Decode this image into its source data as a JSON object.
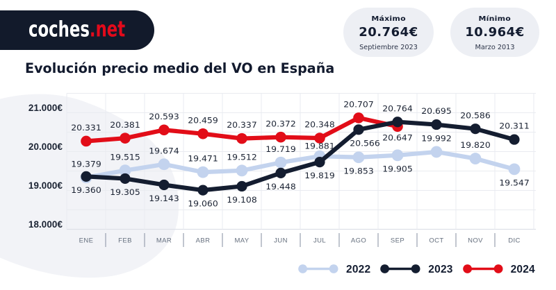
{
  "header": {
    "logo": {
      "brand_white": "coches",
      "brand_red": ".net"
    },
    "badges": [
      {
        "label": "Máximo",
        "value": "20.764€",
        "sublabel": "Septiembre 2023"
      },
      {
        "label": "Mínimo",
        "value": "10.964€",
        "sublabel": "Marzo 2013"
      }
    ]
  },
  "title": "Evolución precio medio del VO en España",
  "chart_data": {
    "type": "line",
    "categories": [
      "ENE",
      "FEB",
      "MAR",
      "ABR",
      "MAY",
      "JUN",
      "JUL",
      "AGO",
      "SEP",
      "OCT",
      "NOV",
      "DIC"
    ],
    "series": [
      {
        "name": "2022",
        "color": "#c3d3ee",
        "values": [
          19379,
          19515,
          19674,
          19471,
          19512,
          19719,
          19881,
          19853,
          19905,
          19992,
          19820,
          19547
        ],
        "label_sides": [
          "above",
          "above",
          "above",
          "above",
          "above",
          "above",
          "above",
          "below",
          "below",
          "above",
          "above",
          "below"
        ]
      },
      {
        "name": "2023",
        "color": "#141d30",
        "values": [
          19360,
          19305,
          19143,
          19060,
          19108,
          19448,
          19819,
          20566,
          20764,
          20695,
          20586,
          20311
        ],
        "label_sides": [
          "below",
          "below",
          "below",
          "below",
          "below",
          "below",
          "below",
          "below",
          "above",
          "above",
          "above",
          "above"
        ]
      },
      {
        "name": "2024",
        "color": "#e20d18",
        "values": [
          20331,
          20381,
          20593,
          20459,
          20337,
          20372,
          20348,
          20707,
          20647,
          null,
          null,
          null
        ],
        "label_sides": [
          "above",
          "above",
          "above",
          "above",
          "above",
          "above",
          "above",
          "above",
          "below",
          "above",
          "above",
          "above"
        ]
      }
    ],
    "y_ticks": [
      {
        "value": 21000,
        "label": "21.000€"
      },
      {
        "value": 20000,
        "label": "20.000€"
      },
      {
        "value": 19000,
        "label": "19.000€"
      },
      {
        "value": 18000,
        "label": "18.000€"
      }
    ],
    "ylim": [
      17800,
      21600
    ],
    "grid": true,
    "legend_position": "bottom",
    "title": "Evolución precio medio del VO en España"
  },
  "legend": [
    {
      "label": "2022",
      "color": "#c3d3ee"
    },
    {
      "label": "2023",
      "color": "#141d30"
    },
    {
      "label": "2024",
      "color": "#e20d18"
    }
  ],
  "colors": {
    "brand_navy": "#121a2b",
    "brand_red": "#e20d18",
    "badge_bg": "#edeff4",
    "blob": "#f2f3f7",
    "grid_line": "#e9ebf0",
    "axis_line": "#dde0e7",
    "month_separator": "#98a0af",
    "month_label": "#646e7d",
    "data_label": "#1b2333"
  }
}
